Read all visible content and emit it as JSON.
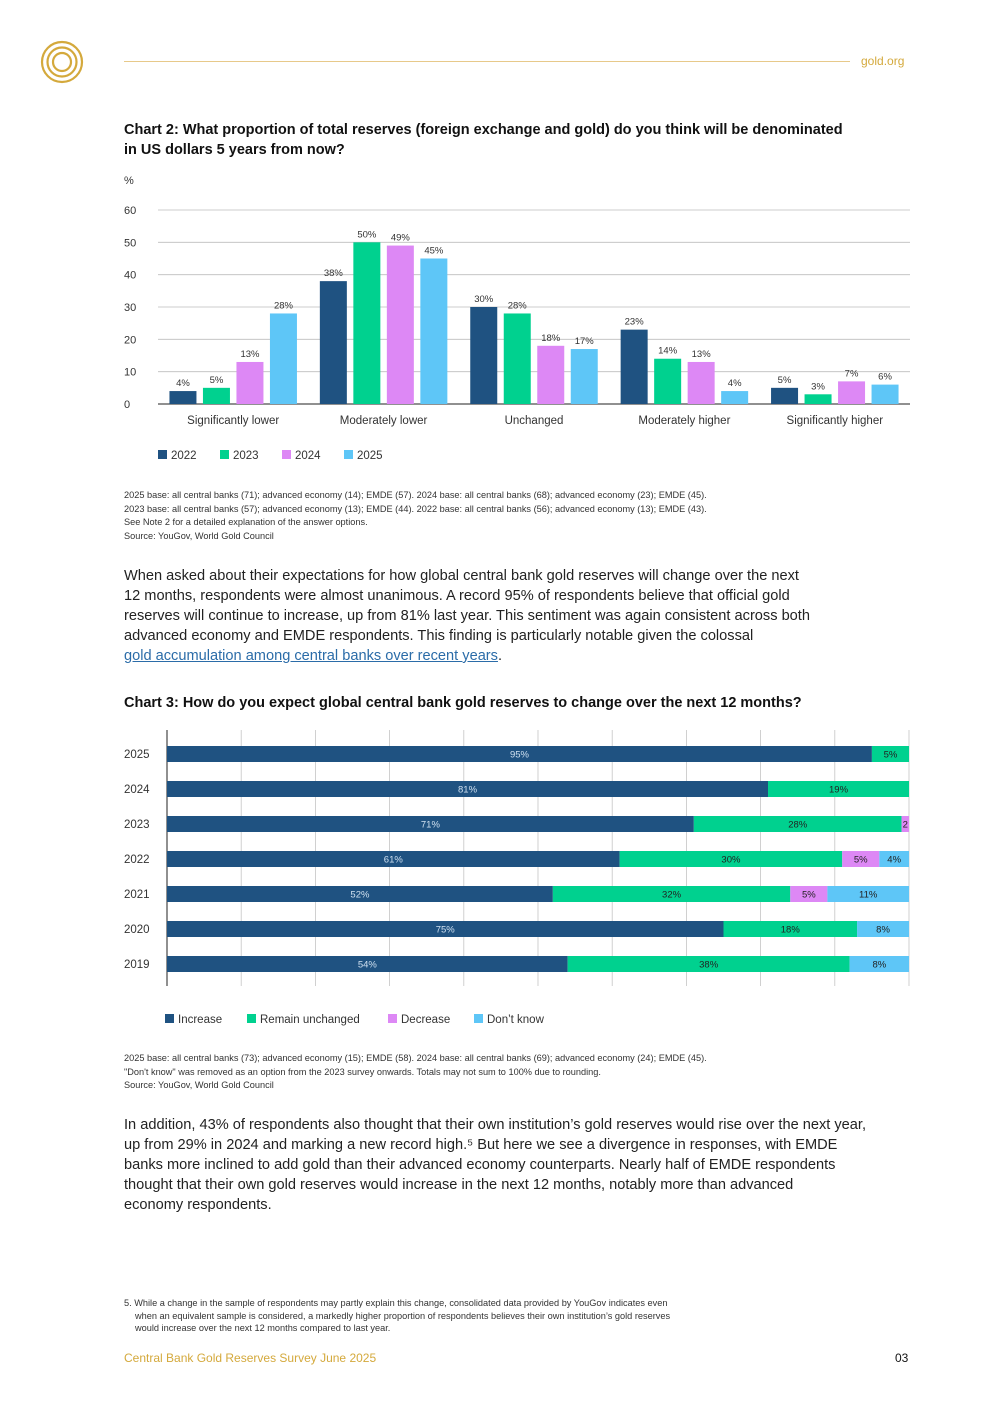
{
  "header": {
    "link": "gold.org"
  },
  "chart2": {
    "title_line1": "Chart 2: What proportion of total reserves (foreign exchange and gold) do you think will be denominated",
    "title_line2": "in US dollars 5 years from now?",
    "notes": [
      "2025 base: all central banks (71); advanced economy (14); EMDE (57). 2024 base: all central banks (68); advanced economy (23); EMDE (45).",
      "2023 base: all central banks (57); advanced economy (13); EMDE (44). 2022 base: all central banks (56); advanced economy (13); EMDE (43).",
      "See Note 2 for a detailed explanation of the answer options.",
      "Source: YouGov, World Gold Council"
    ]
  },
  "paragraph1": {
    "lines": [
      "When asked about their expectations for how global central bank gold reserves will change over the next",
      "12 months, respondents were almost unanimous. A record 95% of respondents believe that official gold",
      "reserves will continue to increase, up from 81% last year. This sentiment was again consistent across both",
      "advanced economy and EMDE respondents. This finding is particularly notable given the colossal"
    ],
    "link_text": "gold accumulation among central banks over recent years",
    "after_link": "."
  },
  "chart3": {
    "title": "Chart 3: How do you expect global central bank gold reserves to change over the next 12 months?",
    "notes": [
      "2025 base: all central banks (73); advanced economy (15); EMDE (58). 2024 base: all central banks (69); advanced economy (24); EMDE (45).",
      "\"Don't know\" was removed as an option from the 2023 survey onwards. Totals may not sum to 100% due to rounding.",
      "Source: YouGov, World Gold Council"
    ]
  },
  "paragraph2": {
    "lines": [
      "In addition, 43% of respondents also thought that their own institution’s gold reserves would rise over the next year,",
      "up from 29% in 2024 and marking a new record high.⁵ But here we see a divergence in responses, with EMDE",
      "banks more inclined to add gold than their advanced economy counterparts. Nearly half of EMDE respondents",
      "thought that their own gold reserves would increase in the next 12 months, notably more than advanced",
      "economy respondents."
    ]
  },
  "footnote": {
    "lines": [
      "5. While a change in the sample of respondents may partly explain this change, consolidated data provided by YouGov indicates even",
      "when an equivalent sample is considered, a markedly higher proportion of respondents believes their own institution’s gold reserves",
      "would increase over the next 12 months compared to last year."
    ]
  },
  "footer": {
    "title": "Central Bank Gold Reserves Survey June 2025",
    "page": "03"
  },
  "colors": {
    "2022": "#1f5281",
    "2023": "#00d18f",
    "2024": "#dd88f5",
    "2025": "#5ec6f7",
    "gold": "#d4a93c",
    "grid": "#bdbdbd",
    "axis": "#222222"
  },
  "chart_data": [
    {
      "type": "bar",
      "title": "Chart 2: What proportion of total reserves (foreign exchange and gold) do you think will be denominated in US dollars 5 years from now?",
      "ylabel": "%",
      "ylim": [
        0,
        60
      ],
      "yticks": [
        0,
        10,
        20,
        30,
        40,
        50,
        60
      ],
      "grid": true,
      "legend": "bottom",
      "categories": [
        "Significantly lower",
        "Moderately lower",
        "Unchanged",
        "Moderately higher",
        "Significantly higher"
      ],
      "series": [
        {
          "name": "2022",
          "color": "#1f5281",
          "values": [
            4,
            38,
            30,
            23,
            5
          ],
          "labels": [
            "4%",
            "38%",
            "30%",
            "23%",
            "5%"
          ]
        },
        {
          "name": "2023",
          "color": "#00d18f",
          "values": [
            5,
            50,
            28,
            14,
            3
          ],
          "labels": [
            "5%",
            "50%",
            "28%",
            "14%",
            "3%"
          ]
        },
        {
          "name": "2024",
          "color": "#dd88f5",
          "values": [
            13,
            49,
            18,
            13,
            7
          ],
          "labels": [
            "13%",
            "49%",
            "18%",
            "13%",
            "7%"
          ]
        },
        {
          "name": "2025",
          "color": "#5ec6f7",
          "values": [
            28,
            45,
            17,
            4,
            6
          ],
          "labels": [
            "28%",
            "45%",
            "17%",
            "4%",
            "6%"
          ]
        }
      ]
    },
    {
      "type": "bar",
      "orientation": "horizontal",
      "stacked": true,
      "title": "Chart 3: How do you expect global central bank gold reserves to change over the next 12 months?",
      "xlim": [
        0,
        100
      ],
      "grid": true,
      "legend": "bottom",
      "categories": [
        "2025",
        "2024",
        "2023",
        "2022",
        "2021",
        "2020",
        "2019"
      ],
      "series": [
        {
          "name": "Increase",
          "color": "#1f5281",
          "values": [
            95,
            81,
            71,
            61,
            52,
            75,
            54
          ],
          "labels": [
            "95%",
            "81%",
            "71%",
            "61%",
            "52%",
            "75%",
            "54%"
          ]
        },
        {
          "name": "Remain unchanged",
          "color": "#00d18f",
          "values": [
            5,
            19,
            28,
            30,
            32,
            18,
            38
          ],
          "labels": [
            "5%",
            "19%",
            "28%",
            "30%",
            "32%",
            "18%",
            "38%"
          ]
        },
        {
          "name": "Decrease",
          "color": "#dd88f5",
          "values": [
            0,
            0,
            2,
            5,
            5,
            0,
            0
          ],
          "labels": [
            "",
            "",
            "2",
            "5%",
            "5%",
            "",
            ""
          ]
        },
        {
          "name": "Don’t know",
          "color": "#5ec6f7",
          "values": [
            0,
            0,
            0,
            4,
            11,
            8,
            8
          ],
          "labels": [
            "",
            "",
            "",
            "4%",
            "11%",
            "8%",
            "8%"
          ]
        }
      ]
    }
  ]
}
